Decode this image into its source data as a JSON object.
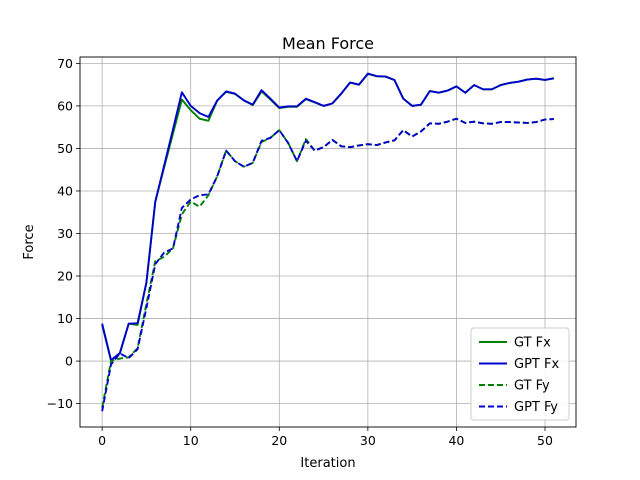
{
  "chart_data": {
    "type": "line",
    "title": "Mean Force",
    "xlabel": "Iteration",
    "ylabel": "Force",
    "xlim": [
      -2.5,
      53.5
    ],
    "ylim": [
      -15.5,
      71.5
    ],
    "xticks": [
      0,
      10,
      20,
      30,
      40,
      50
    ],
    "yticks": [
      -10,
      0,
      10,
      20,
      30,
      40,
      50,
      60,
      70
    ],
    "grid": true,
    "legend_position": "lower-right",
    "series": [
      {
        "name": "GT Fx",
        "color": "#008000",
        "dash": "solid",
        "x": [
          0,
          1,
          2,
          3,
          4,
          5,
          6,
          7,
          8,
          9,
          10,
          11,
          12,
          13,
          14,
          15,
          16,
          17,
          18,
          19,
          20,
          21,
          22,
          23,
          24,
          25,
          26,
          27,
          28,
          29,
          30,
          31,
          32,
          33,
          34,
          35,
          36,
          37,
          38,
          39,
          40,
          41,
          42,
          43,
          44,
          45,
          46,
          47,
          48,
          49,
          50,
          51
        ],
        "y": [
          8.5,
          0.2,
          1.8,
          8.8,
          8.5,
          18.5,
          37.5,
          45.5,
          53.5,
          61.5,
          59.0,
          57.0,
          56.5,
          61.3,
          63.3,
          62.8,
          61.3,
          60.2,
          63.4,
          61.5,
          59.5,
          59.8,
          59.8,
          61.6,
          60.8,
          60.0,
          60.6,
          62.9,
          65.5,
          65.0,
          67.5,
          67.0,
          66.9,
          66.1,
          61.7,
          60.0,
          60.3,
          63.5,
          63.1,
          63.6,
          64.6,
          63.1,
          64.9,
          63.9,
          63.9,
          64.9,
          65.4,
          65.7,
          66.2,
          66.4,
          66.1,
          66.5
        ]
      },
      {
        "name": "GPT Fx",
        "color": "#0000cd",
        "dash": "solid",
        "x": [
          0,
          1,
          2,
          3,
          4,
          5,
          6,
          7,
          8,
          9,
          10,
          11,
          12,
          13,
          14,
          15,
          16,
          17,
          18,
          19,
          20,
          21,
          22,
          23,
          24,
          25,
          26,
          27,
          28,
          29,
          30,
          31,
          32,
          33,
          34,
          35,
          36,
          37,
          38,
          39,
          40,
          41,
          42,
          43,
          44,
          45,
          46,
          47,
          48,
          49,
          50,
          51
        ],
        "y": [
          8.8,
          0.2,
          1.9,
          8.8,
          8.9,
          18.5,
          37.5,
          46.0,
          54.5,
          63.2,
          60.0,
          58.3,
          57.4,
          61.3,
          63.4,
          62.9,
          61.3,
          60.3,
          63.7,
          61.7,
          59.6,
          59.9,
          59.9,
          61.7,
          60.9,
          60.0,
          60.6,
          62.9,
          65.5,
          65.0,
          67.6,
          67.0,
          66.9,
          66.1,
          61.7,
          60.0,
          60.3,
          63.5,
          63.1,
          63.6,
          64.6,
          63.1,
          64.9,
          63.9,
          63.9,
          64.9,
          65.4,
          65.7,
          66.2,
          66.4,
          66.1,
          66.5
        ]
      },
      {
        "name": "GT Fy",
        "color": "#008000",
        "dash": "dashed",
        "x": [
          0,
          1,
          2,
          3,
          4,
          5,
          6,
          7,
          8,
          9,
          10,
          11,
          12,
          13,
          14,
          15,
          16,
          17,
          18,
          19,
          20,
          21,
          22,
          23,
          24,
          25,
          26,
          27,
          28,
          29,
          30,
          31,
          32,
          33,
          34,
          35,
          36,
          37,
          38,
          39,
          40,
          41,
          42,
          43,
          44,
          45,
          46,
          47,
          48,
          49,
          50,
          51
        ],
        "y": [
          -11.0,
          0.0,
          0.6,
          0.9,
          3.0,
          13.5,
          23.5,
          24.5,
          26.5,
          34.5,
          37.5,
          36.3,
          39.0,
          43.5,
          49.5,
          47.0,
          45.7,
          46.6,
          51.5,
          52.5,
          54.3,
          51.3,
          47.0,
          52.2,
          49.5,
          50.3,
          52.0,
          50.5,
          50.3,
          50.7,
          51.0,
          50.8,
          51.4,
          51.9,
          54.3,
          52.8,
          54.0,
          55.9,
          55.8,
          56.3,
          57.0,
          56.0,
          56.3,
          55.9,
          55.8,
          56.2,
          56.2,
          56.1,
          56.0,
          56.2,
          56.8,
          56.9
        ]
      },
      {
        "name": "GPT Fy",
        "color": "#0000cd",
        "dash": "dashed",
        "x": [
          0,
          1,
          2,
          3,
          4,
          5,
          6,
          7,
          8,
          9,
          10,
          11,
          12,
          13,
          14,
          15,
          16,
          17,
          18,
          19,
          20,
          21,
          22,
          23,
          24,
          25,
          26,
          27,
          28,
          29,
          30,
          31,
          32,
          33,
          34,
          35,
          36,
          37,
          38,
          39,
          40,
          41,
          42,
          43,
          44,
          45,
          46,
          47,
          48,
          49,
          50,
          51
        ],
        "y": [
          -11.8,
          -0.8,
          1.8,
          0.7,
          2.8,
          12.5,
          22.8,
          25.5,
          26.5,
          36.0,
          38.0,
          39.0,
          39.2,
          43.5,
          49.5,
          47.0,
          45.7,
          46.6,
          51.8,
          52.5,
          54.3,
          51.3,
          47.0,
          51.8,
          49.5,
          50.3,
          52.0,
          50.5,
          50.3,
          50.7,
          51.0,
          50.8,
          51.4,
          51.9,
          54.3,
          52.8,
          54.0,
          55.9,
          55.8,
          56.3,
          57.0,
          56.0,
          56.3,
          55.9,
          55.8,
          56.2,
          56.2,
          56.1,
          56.0,
          56.2,
          56.8,
          56.9
        ]
      }
    ]
  }
}
